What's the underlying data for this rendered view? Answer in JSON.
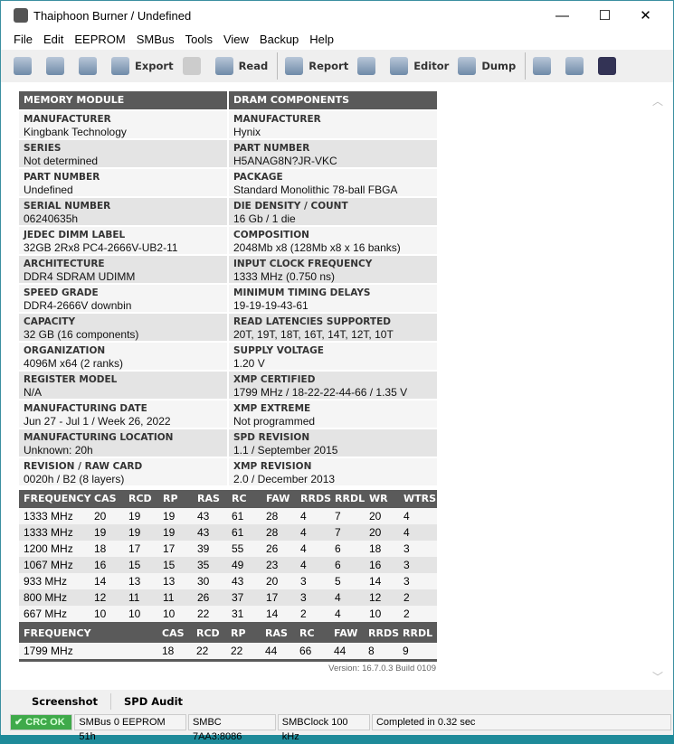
{
  "window": {
    "title": "Thaiphoon Burner / Undefined",
    "minimize": "—",
    "maximize": "☐",
    "close": "✕"
  },
  "menu": [
    "File",
    "Edit",
    "EEPROM",
    "SMBus",
    "Tools",
    "View",
    "Backup",
    "Help"
  ],
  "toolbar": {
    "export": "Export",
    "read": "Read",
    "report": "Report",
    "editor": "Editor",
    "dump": "Dump"
  },
  "module": {
    "header": "MEMORY MODULE",
    "rows": [
      {
        "label": "MANUFACTURER",
        "value": "Kingbank Technology"
      },
      {
        "label": "SERIES",
        "value": "Not determined"
      },
      {
        "label": "PART NUMBER",
        "value": "Undefined"
      },
      {
        "label": "SERIAL NUMBER",
        "value": "06240635h"
      },
      {
        "label": "JEDEC DIMM LABEL",
        "value": "32GB 2Rx8 PC4-2666V-UB2-11"
      },
      {
        "label": "ARCHITECTURE",
        "value": "DDR4 SDRAM UDIMM"
      },
      {
        "label": "SPEED GRADE",
        "value": "DDR4-2666V downbin"
      },
      {
        "label": "CAPACITY",
        "value": "32 GB (16 components)"
      },
      {
        "label": "ORGANIZATION",
        "value": "4096M x64 (2 ranks)"
      },
      {
        "label": "REGISTER MODEL",
        "value": "N/A"
      },
      {
        "label": "MANUFACTURING DATE",
        "value": "Jun 27 - Jul 1 / Week 26, 2022"
      },
      {
        "label": "MANUFACTURING LOCATION",
        "value": "Unknown: 20h"
      },
      {
        "label": "REVISION / RAW CARD",
        "value": "0020h / B2 (8 layers)"
      }
    ]
  },
  "dram": {
    "header": "DRAM COMPONENTS",
    "rows": [
      {
        "label": "MANUFACTURER",
        "value": "Hynix"
      },
      {
        "label": "PART NUMBER",
        "value": "H5ANAG8N?JR-VKC"
      },
      {
        "label": "PACKAGE",
        "value": "Standard Monolithic 78-ball FBGA"
      },
      {
        "label": "DIE DENSITY / COUNT",
        "value": "16 Gb / 1 die"
      },
      {
        "label": "COMPOSITION",
        "value": "2048Mb x8 (128Mb x8 x 16 banks)"
      },
      {
        "label": "INPUT CLOCK FREQUENCY",
        "value": "1333 MHz (0.750 ns)"
      },
      {
        "label": "MINIMUM TIMING DELAYS",
        "value": "19-19-19-43-61"
      },
      {
        "label": "READ LATENCIES SUPPORTED",
        "value": "20T, 19T, 18T, 16T, 14T, 12T, 10T"
      },
      {
        "label": "SUPPLY VOLTAGE",
        "value": "1.20 V"
      },
      {
        "label": "XMP CERTIFIED",
        "value": "1799 MHz / 18-22-22-44-66 / 1.35 V"
      },
      {
        "label": "XMP EXTREME",
        "value": "Not programmed"
      },
      {
        "label": "SPD REVISION",
        "value": "1.1 / September 2015"
      },
      {
        "label": "XMP REVISION",
        "value": "2.0 / December 2013"
      }
    ]
  },
  "jedec_table": {
    "headers": [
      "FREQUENCY",
      "CAS",
      "RCD",
      "RP",
      "RAS",
      "RC",
      "FAW",
      "RRDS",
      "RRDL",
      "WR",
      "WTRS"
    ],
    "rows": [
      [
        "1333 MHz",
        "20",
        "19",
        "19",
        "43",
        "61",
        "28",
        "4",
        "7",
        "20",
        "4"
      ],
      [
        "1333 MHz",
        "19",
        "19",
        "19",
        "43",
        "61",
        "28",
        "4",
        "7",
        "20",
        "4"
      ],
      [
        "1200 MHz",
        "18",
        "17",
        "17",
        "39",
        "55",
        "26",
        "4",
        "6",
        "18",
        "3"
      ],
      [
        "1067 MHz",
        "16",
        "15",
        "15",
        "35",
        "49",
        "23",
        "4",
        "6",
        "16",
        "3"
      ],
      [
        "933 MHz",
        "14",
        "13",
        "13",
        "30",
        "43",
        "20",
        "3",
        "5",
        "14",
        "3"
      ],
      [
        "800 MHz",
        "12",
        "11",
        "11",
        "26",
        "37",
        "17",
        "3",
        "4",
        "12",
        "2"
      ],
      [
        "667 MHz",
        "10",
        "10",
        "10",
        "22",
        "31",
        "14",
        "2",
        "4",
        "10",
        "2"
      ]
    ]
  },
  "xmp_table": {
    "headers": [
      "FREQUENCY",
      "CAS",
      "RCD",
      "RP",
      "RAS",
      "RC",
      "FAW",
      "RRDS",
      "RRDL"
    ],
    "rows": [
      [
        "1799 MHz",
        "18",
        "22",
        "22",
        "44",
        "66",
        "44",
        "8",
        "9"
      ]
    ]
  },
  "version": "Version: 16.7.0.3 Build 0109",
  "tabs": [
    "Screenshot",
    "SPD Audit"
  ],
  "status": {
    "crc": "CRC OK",
    "crc_color": "#3faa4a",
    "smbus": "SMBus 0 EEPROM 51h",
    "smbc": "SMBC 7AA3:8086",
    "clock": "SMBClock 100 kHz",
    "completed": "Completed in 0.32 sec"
  }
}
